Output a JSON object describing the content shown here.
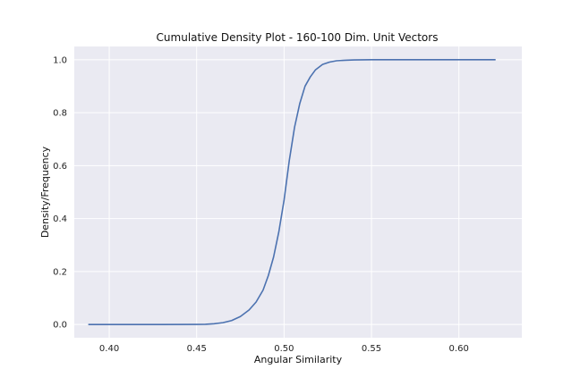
{
  "chart_data": {
    "type": "line",
    "title": "Cumulative Density Plot - 160-100 Dim. Unit Vectors",
    "xlabel": "Angular Similarity",
    "ylabel": "Density/Frequency",
    "xlim": [
      0.38,
      0.636
    ],
    "ylim": [
      -0.05,
      1.05
    ],
    "xticks": [
      0.4,
      0.45,
      0.5,
      0.55,
      0.6
    ],
    "xtick_labels": [
      "0.40",
      "0.45",
      "0.50",
      "0.55",
      "0.60"
    ],
    "yticks": [
      0.0,
      0.2,
      0.4,
      0.6,
      0.8,
      1.0
    ],
    "ytick_labels": [
      "0.0",
      "0.2",
      "0.4",
      "0.6",
      "0.8",
      "1.0"
    ],
    "grid": true,
    "colors": {
      "background": "#eaeaf2",
      "grid": "#ffffff",
      "line": "#4c72b0"
    },
    "series": [
      {
        "x": [
          0.388,
          0.41,
          0.43,
          0.45,
          0.455,
          0.46,
          0.465,
          0.47,
          0.475,
          0.48,
          0.484,
          0.488,
          0.491,
          0.494,
          0.497,
          0.5,
          0.503,
          0.506,
          0.509,
          0.512,
          0.515,
          0.518,
          0.522,
          0.526,
          0.53,
          0.535,
          0.54,
          0.55,
          0.56,
          0.58,
          0.6,
          0.621
        ],
        "y": [
          0.0,
          0.0,
          0.0,
          0.0005,
          0.001,
          0.003,
          0.007,
          0.015,
          0.03,
          0.055,
          0.085,
          0.13,
          0.185,
          0.255,
          0.35,
          0.47,
          0.62,
          0.745,
          0.835,
          0.9,
          0.935,
          0.962,
          0.982,
          0.991,
          0.996,
          0.998,
          0.999,
          1.0,
          1.0,
          1.0,
          1.0,
          1.0
        ]
      }
    ]
  }
}
